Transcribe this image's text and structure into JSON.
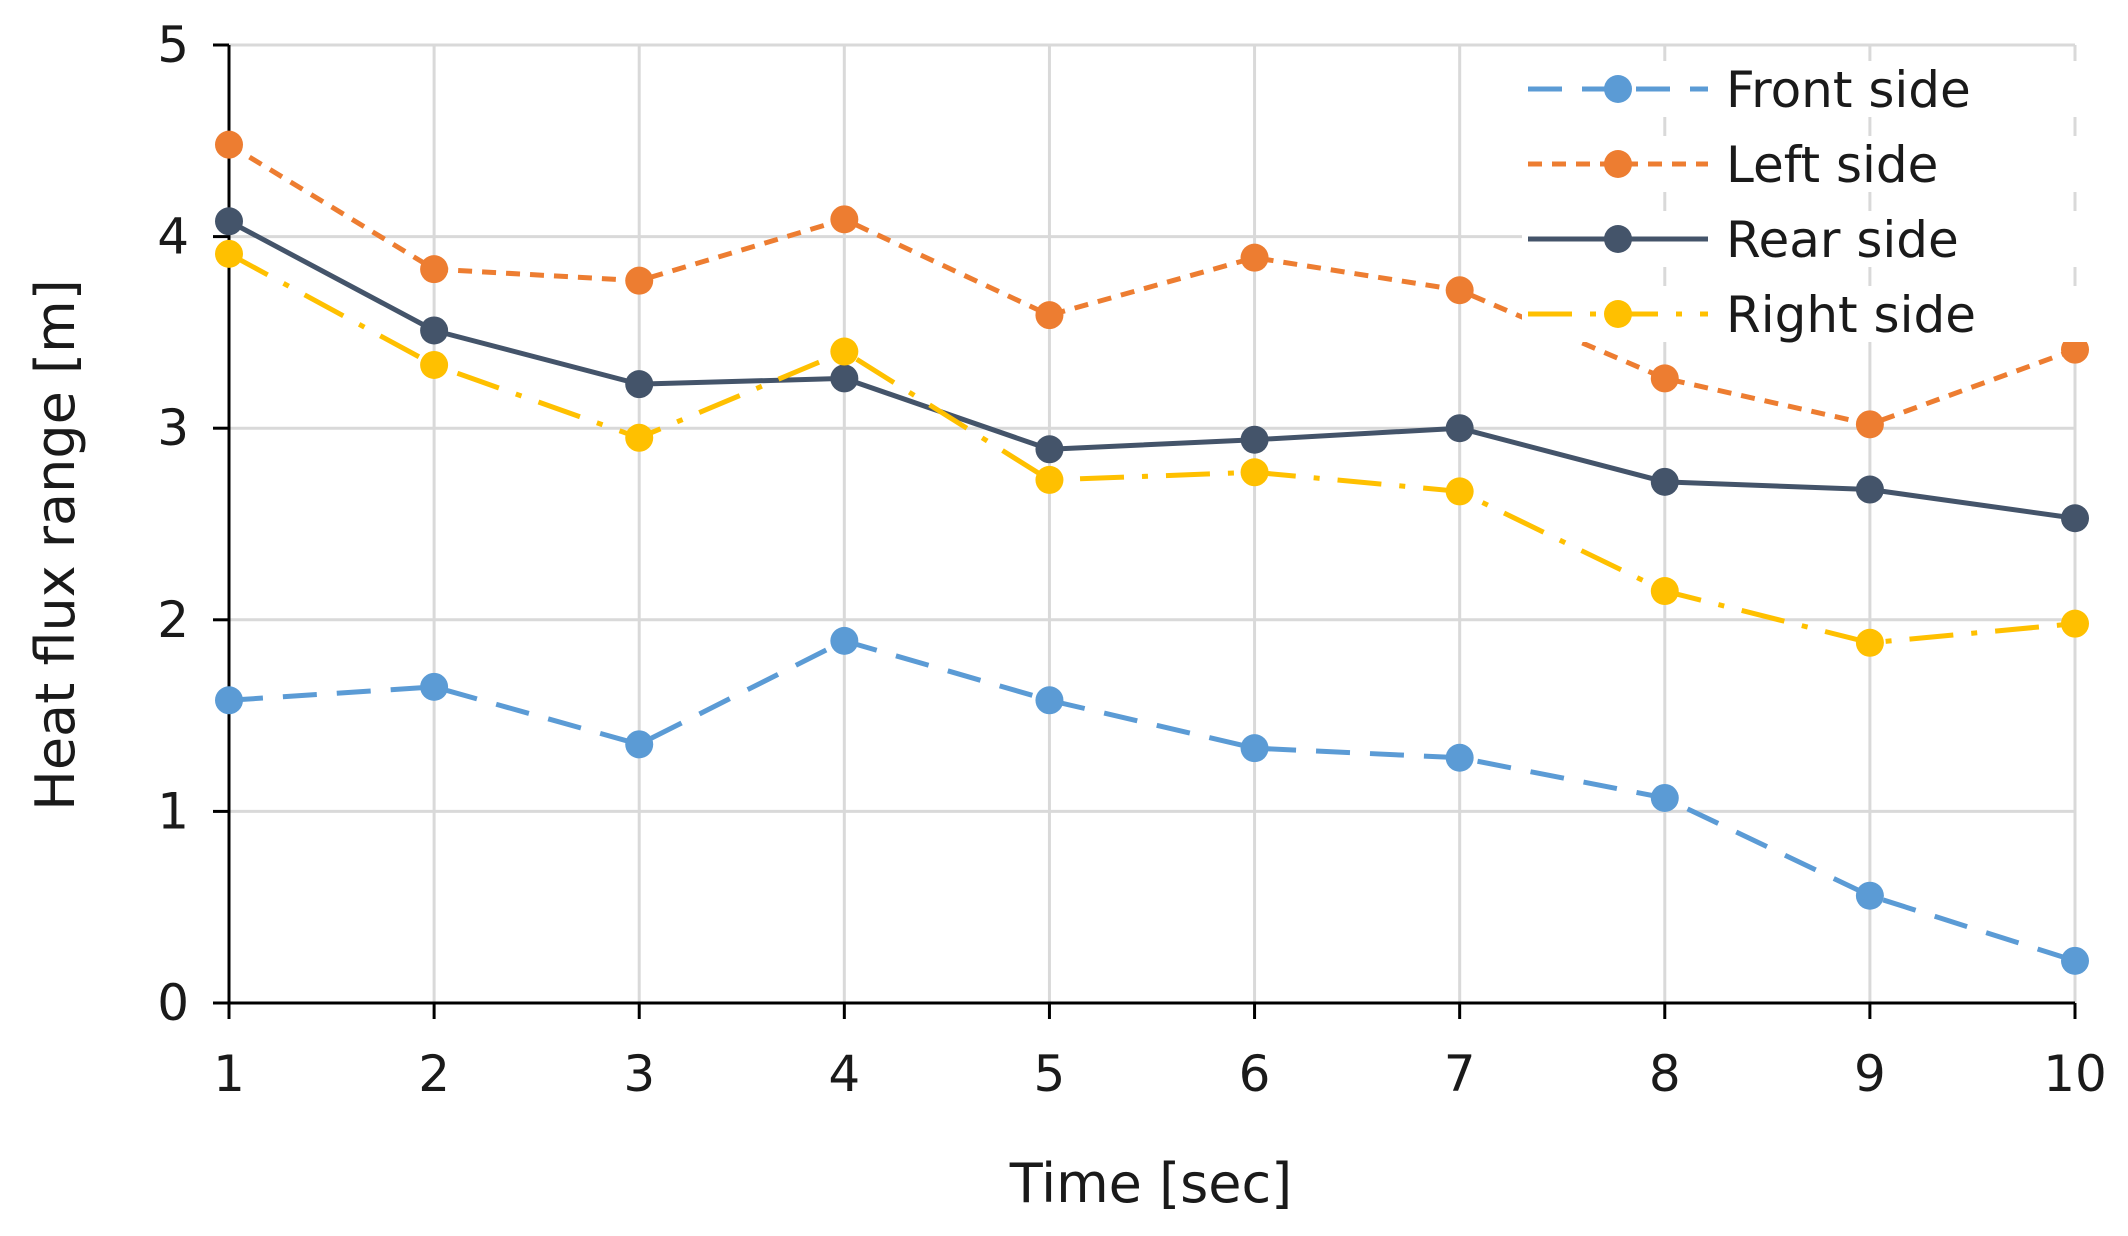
{
  "chart_data": {
    "type": "line",
    "title": "",
    "xlabel": "Time [sec]",
    "ylabel": "Heat flux range [m]",
    "x": [
      1,
      2,
      3,
      4,
      5,
      6,
      7,
      8,
      9,
      10
    ],
    "xlim": [
      1,
      10
    ],
    "ylim": [
      0,
      5
    ],
    "yticks": [
      0,
      1,
      2,
      3,
      4,
      5
    ],
    "grid": true,
    "legend_position": "top-right",
    "series": [
      {
        "name": "Front side",
        "color": "#5b9bd5",
        "dash": "dashed",
        "values": [
          1.58,
          1.65,
          1.35,
          1.89,
          1.58,
          1.33,
          1.28,
          1.07,
          0.56,
          0.22
        ]
      },
      {
        "name": "Left side",
        "color": "#ed7d31",
        "dash": "dotted",
        "values": [
          4.48,
          3.83,
          3.77,
          4.09,
          3.59,
          3.89,
          3.72,
          3.26,
          3.02,
          3.41
        ]
      },
      {
        "name": "Rear side",
        "color": "#44546a",
        "dash": "solid",
        "values": [
          4.08,
          3.51,
          3.23,
          3.26,
          2.89,
          2.94,
          3.0,
          2.72,
          2.68,
          2.53
        ]
      },
      {
        "name": "Right side",
        "color": "#ffc000",
        "dash": "dashdot",
        "values": [
          3.91,
          3.33,
          2.95,
          3.4,
          2.73,
          2.77,
          2.67,
          2.15,
          1.88,
          1.98
        ]
      }
    ]
  }
}
